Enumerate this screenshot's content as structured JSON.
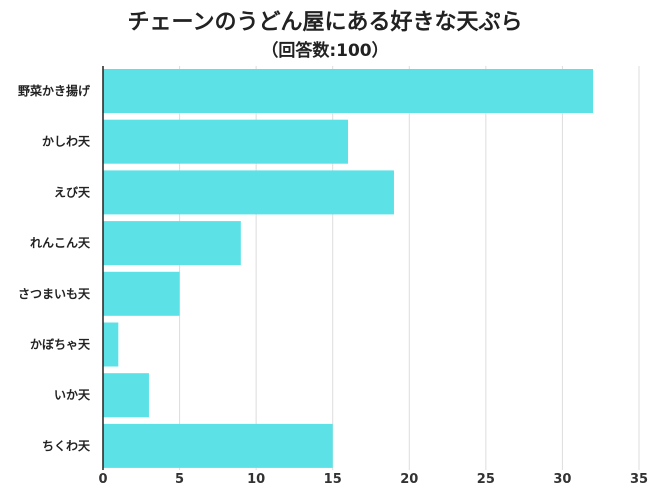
{
  "chart_data": {
    "type": "bar",
    "orientation": "horizontal",
    "title": "チェーンのうどん屋にある好きな天ぷら",
    "subtitle": "（回答数:100）",
    "categories": [
      "野菜かき揚げ",
      "かしわ天",
      "えび天",
      "れんこん天",
      "さつまいも天",
      "かぼちゃ天",
      "いか天",
      "ちくわ天"
    ],
    "values": [
      32,
      16,
      19,
      9,
      5,
      1,
      3,
      15
    ],
    "xlim": [
      0,
      35
    ],
    "xticks": [
      0,
      5,
      10,
      15,
      20,
      25,
      30,
      35
    ],
    "grid": true,
    "bar_color": "#5ce1e6",
    "grid_color": "#dddddd"
  }
}
